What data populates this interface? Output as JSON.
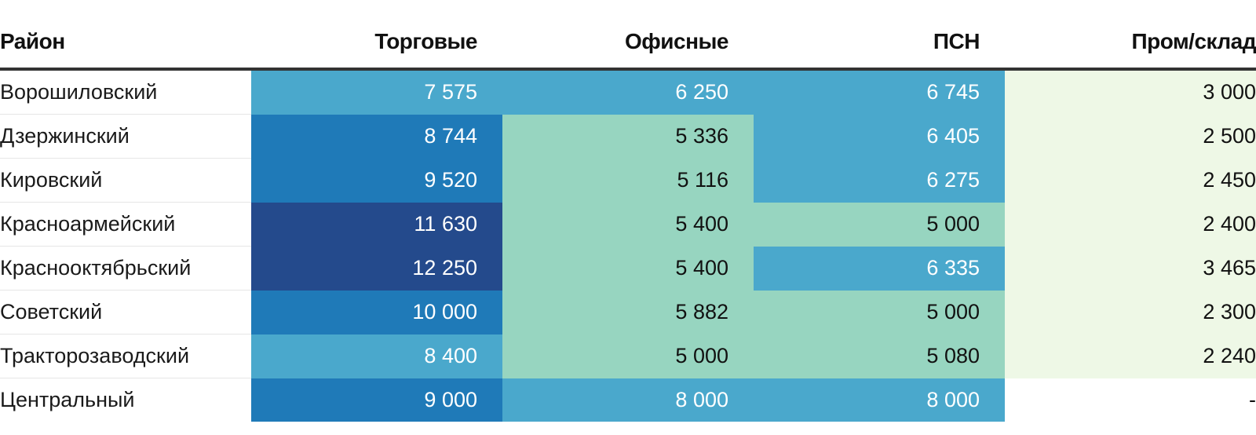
{
  "chart_data": {
    "type": "table",
    "columns": [
      "Район",
      "Торговые",
      "Офисные",
      "ПСН",
      "Пром/склад"
    ],
    "rows": [
      {
        "name": "Ворошиловский",
        "values": [
          "7 575",
          "6 250",
          "6 745",
          "3 000"
        ]
      },
      {
        "name": "Дзержинский",
        "values": [
          "8 744",
          "5 336",
          "6 405",
          "2 500"
        ]
      },
      {
        "name": "Кировский",
        "values": [
          "9 520",
          "5 116",
          "6 275",
          "2 450"
        ]
      },
      {
        "name": "Красноармейский",
        "values": [
          "11 630",
          "5 400",
          "5 000",
          "2 400"
        ]
      },
      {
        "name": "Краснооктябрьский",
        "values": [
          "12 250",
          "5 400",
          "6 335",
          "3 465"
        ]
      },
      {
        "name": "Советский",
        "values": [
          "10 000",
          "5 882",
          "5 000",
          "2 300"
        ]
      },
      {
        "name": "Тракторозаводский",
        "values": [
          "8 400",
          "5 000",
          "5 080",
          "2 240"
        ]
      },
      {
        "name": "Центральный",
        "values": [
          "9 000",
          "8 000",
          "8 000",
          "-"
        ]
      }
    ],
    "color_scale": {
      "white": "#ffffff",
      "pale_green": "#eef8e6",
      "mint": "#97d5c0",
      "light_blue": "#4aa8cc",
      "blue": "#1f7ab8",
      "dark_blue": "#244a8c"
    }
  }
}
